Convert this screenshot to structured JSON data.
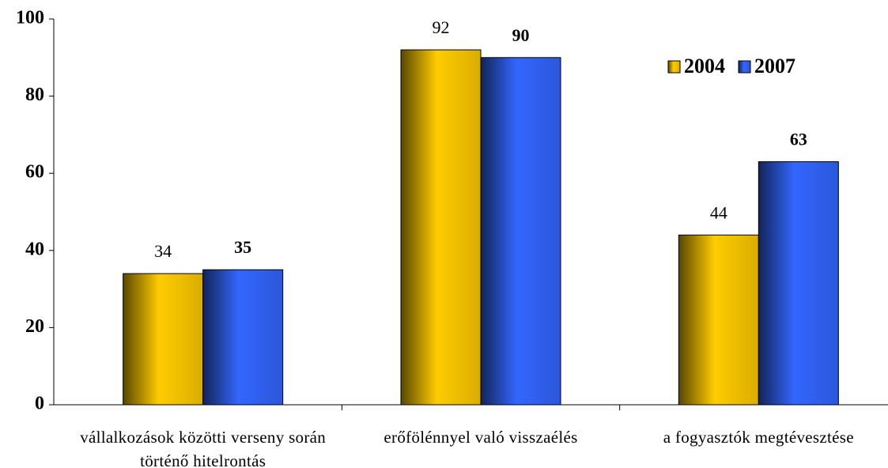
{
  "chart_data": {
    "type": "bar",
    "categories": [
      "vállalkozások közötti verseny során történő hitelrontás",
      "erőfölénnyel való visszaélés",
      "a fogyasztók megtévesztése"
    ],
    "series": [
      {
        "name": "2004",
        "color": "#ffcc00",
        "values": [
          34,
          92,
          44
        ]
      },
      {
        "name": "2007",
        "color": "#3366ff",
        "values": [
          35,
          90,
          63
        ]
      }
    ],
    "ylim": [
      0,
      100
    ],
    "yticks": [
      0,
      20,
      40,
      60,
      80,
      100
    ],
    "legend": "top-right"
  }
}
